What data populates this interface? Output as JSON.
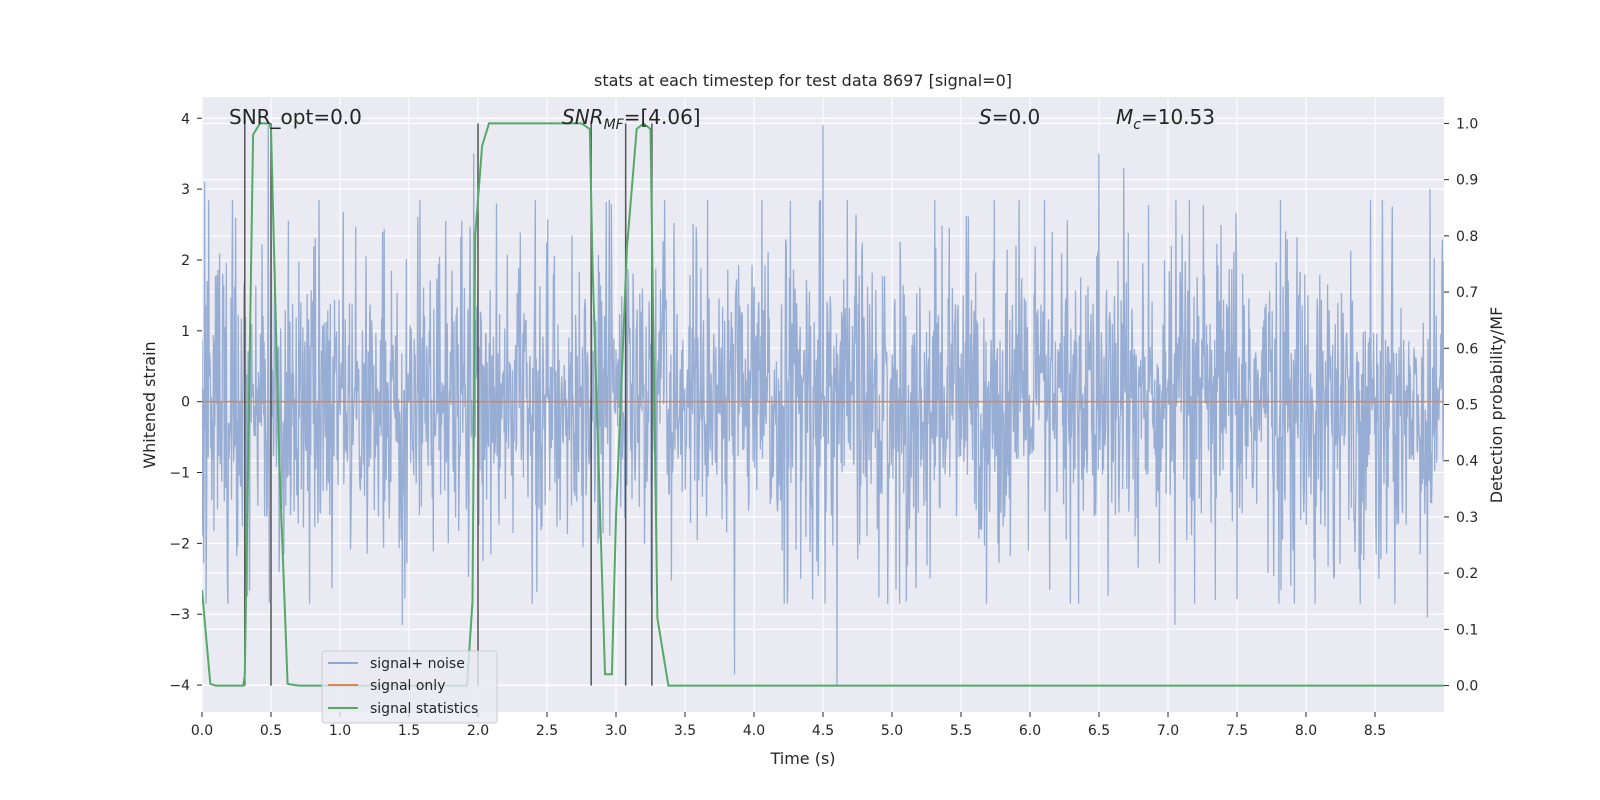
{
  "chart_data": {
    "type": "line",
    "title": "stats at each timestep for test data 8697 [signal=0]",
    "xlabel": "Time (s)",
    "ylabel": "Whitened strain",
    "y2label": "Detection probability/MF",
    "xlim": [
      0.0,
      9.0
    ],
    "ylim": [
      -4.38,
      4.3
    ],
    "y2lim": [
      -0.047,
      1.047
    ],
    "xticks": [
      0.0,
      0.5,
      1.0,
      1.5,
      2.0,
      2.5,
      3.0,
      3.5,
      4.0,
      4.5,
      5.0,
      5.5,
      6.0,
      6.5,
      7.0,
      7.5,
      8.0,
      8.5
    ],
    "xtick_labels": [
      "0.0",
      "0.5",
      "1.0",
      "1.5",
      "2.0",
      "2.5",
      "3.0",
      "3.5",
      "4.0",
      "4.5",
      "5.0",
      "5.5",
      "6.0",
      "6.5",
      "7.0",
      "7.5",
      "8.0",
      "8.5"
    ],
    "yticks": [
      4,
      3,
      2,
      1,
      0,
      -1,
      -2,
      -3,
      -4
    ],
    "ytick_labels": [
      "4",
      "3",
      "2",
      "1",
      "0",
      "−1",
      "−2",
      "−3",
      "−4"
    ],
    "y2ticks": [
      1.0,
      0.9,
      0.8,
      0.7,
      0.6,
      0.5,
      0.4,
      0.3,
      0.2,
      0.1,
      0.0
    ],
    "y2tick_labels": [
      "1.0",
      "0.9",
      "0.8",
      "0.7",
      "0.6",
      "0.5",
      "0.4",
      "0.3",
      "0.2",
      "0.1",
      "0.0"
    ],
    "grid": true,
    "legend_position": "lower-left",
    "annotations": {
      "snr_opt": "SNR_opt=0.0",
      "snr_mf_sym": "SNR",
      "snr_mf_sub": "MF",
      "snr_mf_val": "=[4.06]",
      "s_sym": "S",
      "s_val": "=0.0",
      "mc_sym": "M",
      "mc_sub": "c",
      "mc_val": "=10.53"
    },
    "noise_envelope": {
      "typical_amplitude": 1.5,
      "extremes": [
        {
          "x": 0.02,
          "y": 3.1
        },
        {
          "x": 0.33,
          "y": -2.75
        },
        {
          "x": 0.48,
          "y": 3.9
        },
        {
          "x": 1.45,
          "y": -3.15
        },
        {
          "x": 1.97,
          "y": 3.5
        },
        {
          "x": 3.86,
          "y": -3.85
        },
        {
          "x": 4.5,
          "y": 3.9
        },
        {
          "x": 4.6,
          "y": -4.0
        },
        {
          "x": 6.5,
          "y": 3.5
        },
        {
          "x": 6.68,
          "y": 3.3
        },
        {
          "x": 7.05,
          "y": -3.15
        },
        {
          "x": 8.9,
          "y": 3.0
        },
        {
          "x": 8.88,
          "y": -3.05
        }
      ]
    },
    "vertical_lines": [
      0.31,
      0.5,
      2.0,
      2.82,
      3.07,
      3.26
    ],
    "series": [
      {
        "name": "signal+ noise",
        "color": "#8fa6cf",
        "description_values": "whitened strain noise"
      },
      {
        "name": "signal only",
        "color": "#dd8452",
        "x": [
          0.0,
          9.0
        ],
        "y": [
          0.0,
          0.0
        ]
      },
      {
        "name": "signal statistics",
        "color": "#55a868",
        "axis": "right",
        "x": [
          0.0,
          0.06,
          0.1,
          0.3,
          0.31,
          0.37,
          0.42,
          0.49,
          0.5,
          0.56,
          0.62,
          0.7,
          1.92,
          1.96,
          1.98,
          2.03,
          2.08,
          2.75,
          2.81,
          2.83,
          2.92,
          2.97,
          3.0,
          3.08,
          3.15,
          3.2,
          3.25,
          3.3,
          3.38,
          3.5,
          9.0
        ],
        "y": [
          0.17,
          0.003,
          0.0,
          0.0,
          0.02,
          0.98,
          1.0,
          1.0,
          0.99,
          0.4,
          0.003,
          0.0,
          0.0,
          0.15,
          0.8,
          0.96,
          1.0,
          1.0,
          0.99,
          0.75,
          0.02,
          0.02,
          0.3,
          0.78,
          0.99,
          1.0,
          0.99,
          0.12,
          0.0,
          0.0,
          0.0
        ]
      }
    ]
  }
}
